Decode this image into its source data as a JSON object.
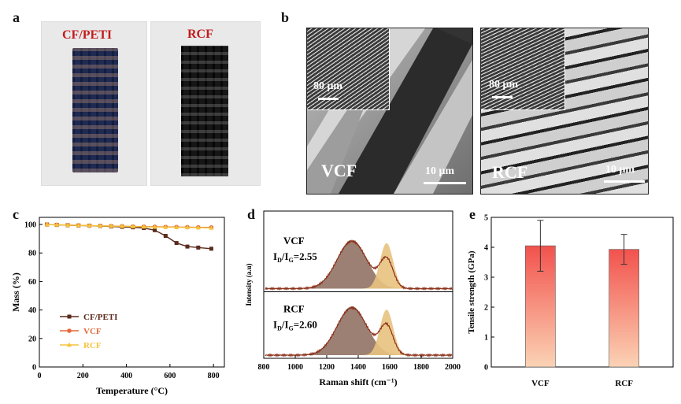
{
  "panels": {
    "a": {
      "label": "a",
      "left_title": "CF/PETI",
      "right_title": "RCF"
    },
    "b": {
      "label": "b",
      "left_name": "VCF",
      "right_name": "RCF",
      "inset_scale": "80 μm",
      "main_scale": "10 μm"
    },
    "c": {
      "label": "c"
    },
    "d": {
      "label": "d",
      "upper_name": "VCF",
      "upper_ratio": "2.55",
      "lower_name": "RCF",
      "lower_ratio": "2.60"
    },
    "e": {
      "label": "e"
    }
  },
  "colors": {
    "cfpeti": "#5a2a1c",
    "vcf": "#e36a3c",
    "rcf": "#f5c33b",
    "raman_line": "#8b2e17",
    "d_peak": "#8b6a5b",
    "g_peak": "#e8c27f",
    "bar_top": "#f2524d",
    "bar_bottom": "#fbd3b5",
    "accent_red": "#c41a1a"
  },
  "chart_data": [
    {
      "panel": "c",
      "type": "line",
      "xlabel": "Temperature (°C)",
      "ylabel": "Mass (%)",
      "xlim": [
        0,
        850
      ],
      "ylim": [
        0,
        105
      ],
      "xticks": [
        "0",
        "200",
        "400",
        "600",
        "800"
      ],
      "yticks": [
        "0",
        "20",
        "40",
        "60",
        "80",
        "100"
      ],
      "legend_position": "bottom-left",
      "series": [
        {
          "name": "CF/PETI",
          "marker": "square",
          "x": [
            35,
            80,
            130,
            180,
            230,
            280,
            330,
            380,
            430,
            480,
            530,
            580,
            630,
            680,
            730,
            790
          ],
          "y": [
            100,
            99.7,
            99.5,
            99.3,
            99.1,
            98.9,
            98.6,
            98.3,
            98,
            97.5,
            96,
            92,
            87,
            84.5,
            83.8,
            83
          ]
        },
        {
          "name": "VCF",
          "marker": "circle",
          "x": [
            35,
            80,
            130,
            180,
            230,
            280,
            330,
            380,
            430,
            480,
            530,
            580,
            630,
            680,
            730,
            790
          ],
          "y": [
            100,
            99.8,
            99.6,
            99.4,
            99.2,
            99,
            98.9,
            98.8,
            98.6,
            98.5,
            98.4,
            98.3,
            98.2,
            98.1,
            98,
            97.9
          ]
        },
        {
          "name": "RCF",
          "marker": "triangle",
          "x": [
            35,
            80,
            130,
            180,
            230,
            280,
            330,
            380,
            430,
            480,
            530,
            580,
            630,
            680,
            730,
            790
          ],
          "y": [
            100,
            99.8,
            99.6,
            99.4,
            99.2,
            99,
            98.9,
            98.8,
            98.6,
            98.4,
            98.2,
            98.1,
            98,
            97.9,
            97.8,
            97.6
          ]
        }
      ]
    },
    {
      "panel": "d",
      "type": "area",
      "xlabel": "Raman shift (cm⁻¹)",
      "ylabel": "Intensity (a.u)",
      "xlim": [
        800,
        2000
      ],
      "xticks": [
        "800",
        "1000",
        "1200",
        "1400",
        "1600",
        "1800",
        "2000"
      ],
      "series": [
        {
          "name": "VCF",
          "d_band": 1360,
          "g_band": 1580,
          "ratio": 2.55
        },
        {
          "name": "RCF",
          "d_band": 1360,
          "g_band": 1580,
          "ratio": 2.6
        }
      ]
    },
    {
      "panel": "e",
      "type": "bar",
      "xlabel": "",
      "ylabel": "Tensile strength (GPa)",
      "ylim": [
        0,
        5
      ],
      "yticks": [
        "0",
        "1",
        "2",
        "3",
        "4",
        "5"
      ],
      "categories": [
        "VCF",
        "RCF"
      ],
      "values": [
        4.05,
        3.93
      ],
      "errors": [
        0.85,
        0.5
      ]
    }
  ]
}
